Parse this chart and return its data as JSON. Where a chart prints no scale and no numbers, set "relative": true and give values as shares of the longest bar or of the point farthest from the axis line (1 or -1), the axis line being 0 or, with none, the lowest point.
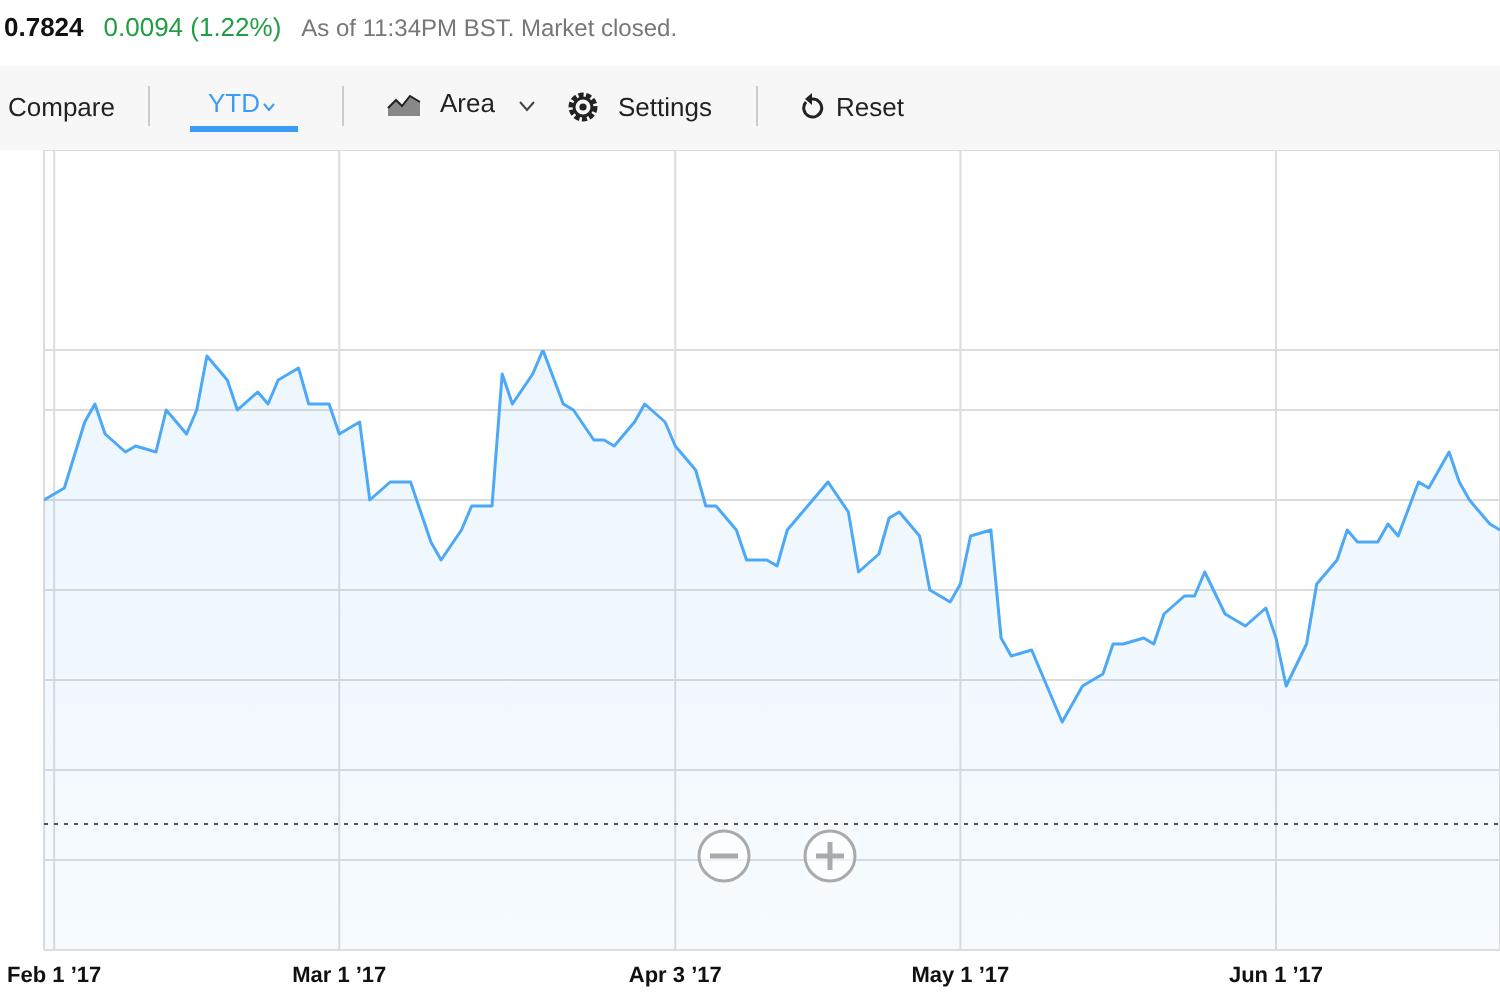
{
  "chart_data": {
    "type": "area",
    "relative": true,
    "grid": true,
    "legend": false,
    "marker": "none",
    "line_style": "solid",
    "annotations": [
      "0.7824",
      "0.0094 (1.22%)",
      "As of 11:34PM BST. Market closed.",
      "Compare",
      "YTD",
      "Area",
      "Settings",
      "Reset"
    ],
    "xlim": [
      "2017-01-31",
      "2017-06-23"
    ],
    "xticks": [
      {
        "value": "2017-02-01",
        "label": "Feb 1 ’17"
      },
      {
        "value": "2017-03-01",
        "label": "Mar 1 ’17"
      },
      {
        "value": "2017-04-03",
        "label": "Apr 3 ’17"
      },
      {
        "value": "2017-05-01",
        "label": "May 1 ’17"
      },
      {
        "value": "2017-06-01",
        "label": "Jun 1 ’17"
      }
    ],
    "ref_lines": [
      {
        "axis": "y",
        "value": 0.21,
        "line_style": "dotted",
        "color": "#555555"
      }
    ],
    "x": [
      "2017-01-31",
      "2017-02-01",
      "2017-02-02",
      "2017-02-04",
      "2017-02-05",
      "2017-02-06",
      "2017-02-08",
      "2017-02-09",
      "2017-02-11",
      "2017-02-12",
      "2017-02-14",
      "2017-02-15",
      "2017-02-16",
      "2017-02-18",
      "2017-02-19",
      "2017-02-21",
      "2017-02-22",
      "2017-02-23",
      "2017-02-25",
      "2017-02-26",
      "2017-02-28",
      "2017-03-01",
      "2017-03-03",
      "2017-03-04",
      "2017-03-06",
      "2017-03-07",
      "2017-03-08",
      "2017-03-10",
      "2017-03-11",
      "2017-03-13",
      "2017-03-14",
      "2017-03-16",
      "2017-03-17",
      "2017-03-18",
      "2017-03-20",
      "2017-03-21",
      "2017-03-23",
      "2017-03-24",
      "2017-03-26",
      "2017-03-27",
      "2017-03-28",
      "2017-03-30",
      "2017-03-31",
      "2017-04-02",
      "2017-04-03",
      "2017-04-05",
      "2017-04-06",
      "2017-04-07",
      "2017-04-09",
      "2017-04-10",
      "2017-04-12",
      "2017-04-13",
      "2017-04-14",
      "2017-04-16",
      "2017-04-17",
      "2017-04-18",
      "2017-04-20",
      "2017-04-21",
      "2017-04-23",
      "2017-04-24",
      "2017-04-25",
      "2017-04-27",
      "2017-04-28",
      "2017-04-30",
      "2017-05-01",
      "2017-05-02",
      "2017-05-04",
      "2017-05-05",
      "2017-05-06",
      "2017-05-08",
      "2017-05-09",
      "2017-05-11",
      "2017-05-12",
      "2017-05-13",
      "2017-05-15",
      "2017-05-16",
      "2017-05-17",
      "2017-05-19",
      "2017-05-20",
      "2017-05-21",
      "2017-05-23",
      "2017-05-24",
      "2017-05-25",
      "2017-05-27",
      "2017-05-28",
      "2017-05-29",
      "2017-05-31",
      "2017-06-01",
      "2017-06-02",
      "2017-06-04",
      "2017-06-05",
      "2017-06-07",
      "2017-06-08",
      "2017-06-09",
      "2017-06-11",
      "2017-06-12",
      "2017-06-13",
      "2017-06-15",
      "2017-06-16",
      "2017-06-18",
      "2017-06-19",
      "2017-06-20",
      "2017-06-22",
      "2017-06-23"
    ],
    "series": [
      {
        "color": "#4da9f6",
        "values": [
          0.75,
          0.76,
          0.77,
          0.88,
          0.91,
          0.86,
          0.83,
          0.84,
          0.83,
          0.9,
          0.86,
          0.9,
          0.99,
          0.95,
          0.9,
          0.93,
          0.91,
          0.95,
          0.97,
          0.91,
          0.91,
          0.86,
          0.88,
          0.75,
          0.78,
          0.78,
          0.78,
          0.68,
          0.65,
          0.7,
          0.74,
          0.74,
          0.96,
          0.91,
          0.96,
          1.0,
          0.91,
          0.9,
          0.85,
          0.85,
          0.84,
          0.88,
          0.91,
          0.88,
          0.84,
          0.8,
          0.74,
          0.74,
          0.7,
          0.65,
          0.65,
          0.64,
          0.7,
          0.74,
          0.76,
          0.78,
          0.73,
          0.63,
          0.66,
          0.72,
          0.73,
          0.69,
          0.6,
          0.58,
          0.61,
          0.69,
          0.7,
          0.52,
          0.49,
          0.5,
          0.46,
          0.38,
          0.41,
          0.44,
          0.46,
          0.51,
          0.51,
          0.52,
          0.51,
          0.56,
          0.59,
          0.59,
          0.63,
          0.56,
          0.55,
          0.54,
          0.57,
          0.52,
          0.44,
          0.51,
          0.61,
          0.65,
          0.7,
          0.68,
          0.68,
          0.71,
          0.69,
          0.78,
          0.77,
          0.83,
          0.78,
          0.75,
          0.71,
          0.7
        ]
      }
    ]
  }
}
